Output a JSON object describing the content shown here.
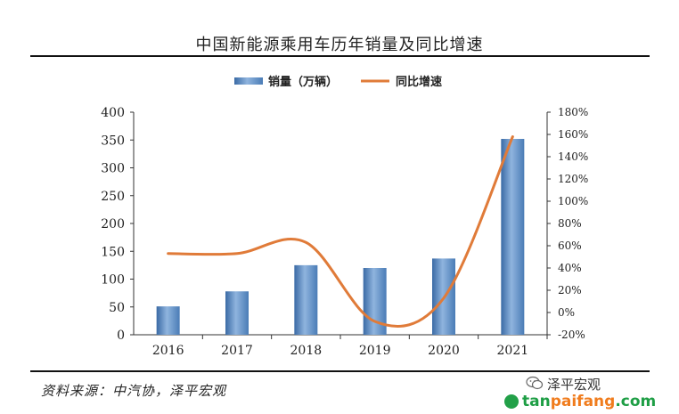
{
  "title": "中国新能源乘用车历年销量及同比增速",
  "source": "资料来源：中汽协，泽平宏观",
  "watermark": {
    "account": "泽平宏观",
    "site_prefix": "tan",
    "site_middle": "paifang",
    "site_suffix": ".com"
  },
  "colors": {
    "bar": "#4a7cb6",
    "line": "#e07b39",
    "rule": "#111111"
  },
  "chart_data": {
    "type": "bar",
    "title": "中国新能源乘用车历年销量及同比增速",
    "categories": [
      "2016",
      "2017",
      "2018",
      "2019",
      "2020",
      "2021"
    ],
    "series": [
      {
        "name": "销量（万辆）",
        "type": "bar",
        "axis": "left",
        "values": [
          51,
          78,
          125,
          120,
          137,
          352
        ]
      },
      {
        "name": "同比增速",
        "type": "line",
        "axis": "right",
        "values": [
          53,
          53,
          63,
          -8,
          13,
          158
        ]
      }
    ],
    "left_axis": {
      "min": 0,
      "max": 400,
      "ticks": [
        "0",
        "50",
        "100",
        "150",
        "200",
        "250",
        "300",
        "350",
        "400"
      ]
    },
    "right_axis": {
      "min": -20,
      "max": 180,
      "ticks": [
        "-20%",
        "0%",
        "20%",
        "40%",
        "60%",
        "80%",
        "100%",
        "120%",
        "140%",
        "160%",
        "180%"
      ]
    },
    "legend_position": "top-center",
    "grid": false
  }
}
